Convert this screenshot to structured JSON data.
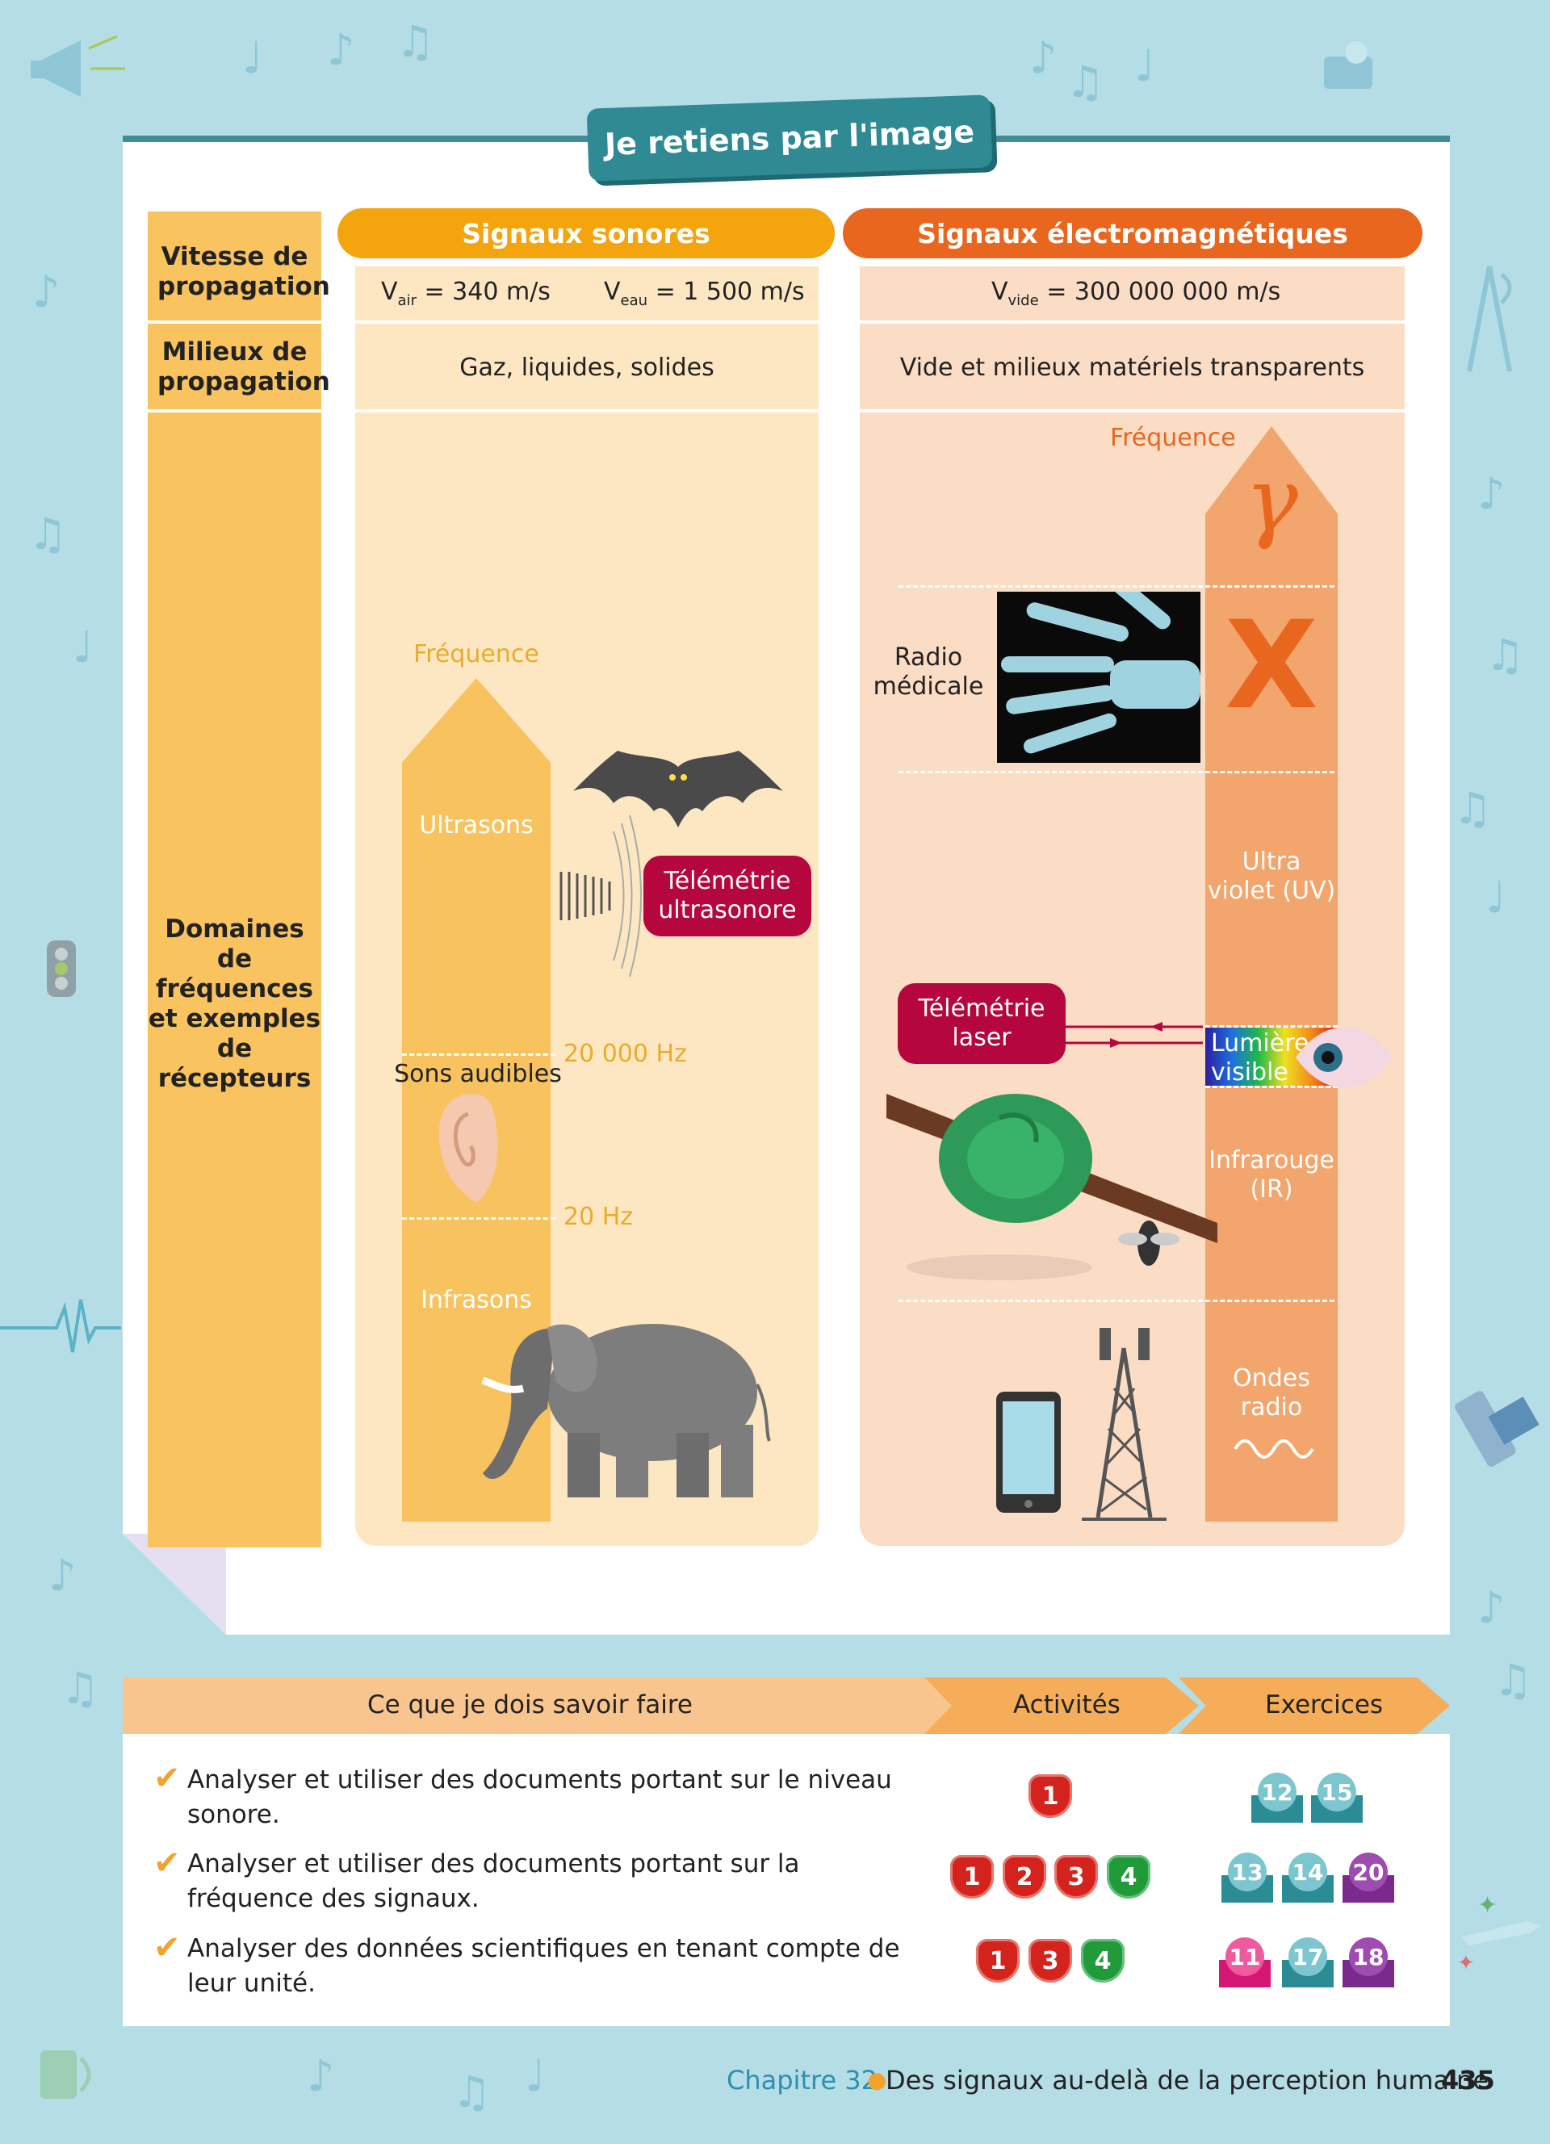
{
  "title": "Je retiens par l'image",
  "row_labels": {
    "speed": "Vitesse de propagation",
    "media": "Milieux de propagation",
    "domains": "Domaines de fréquences et exemples de récepteurs"
  },
  "columns": {
    "sound": {
      "header": "Signaux sonores",
      "speed_air_label": "V",
      "speed_air_sub": "air",
      "speed_air_value": " = 340 m/s",
      "speed_water_label": "V",
      "speed_water_sub": "eau",
      "speed_water_value": " = 1 500 m/s",
      "media": "Gaz, liquides, solides",
      "frequency_label": "Fréquence",
      "ultrasons": "Ultrasons",
      "audible": "Sons audibles",
      "infrasons": "Infrasons",
      "limit_high": "20 000 Hz",
      "limit_low": "20 Hz",
      "telemetry": "Télémétrie ultrasonore"
    },
    "em": {
      "header": "Signaux électromagnétiques",
      "speed_label": "V",
      "speed_sub": "vide",
      "speed_value": " = 300 000 000 m/s",
      "media": "Vide et milieux matériels transparents",
      "frequency_label": "Fréquence",
      "gamma": "γ",
      "xray": "X",
      "radio_med": "Radio médicale",
      "uv": "Ultra violet (UV)",
      "visible": "Lumière visible",
      "ir": "Infrarouge (IR)",
      "radio": "Ondes radio",
      "telemetry": "Télémétrie laser"
    }
  },
  "skills": {
    "header": "Ce que je dois savoir faire",
    "activities_header": "Activités",
    "exercises_header": "Exercices",
    "rows": [
      {
        "text": "Analyser et utiliser des documents portant sur le niveau sonore.",
        "activities": [
          "1"
        ],
        "exercises": [
          "12",
          "15"
        ]
      },
      {
        "text": "Analyser et utiliser des documents portant sur la fréquence des signaux.",
        "activities": [
          "1",
          "2",
          "3",
          "4"
        ],
        "exercises": [
          "13",
          "14",
          "20"
        ]
      },
      {
        "text": "Analyser des données scientifiques en tenant compte de leur unité.",
        "activities": [
          "1",
          "3",
          "4"
        ],
        "exercises": [
          "11",
          "17",
          "18"
        ]
      }
    ]
  },
  "footer": {
    "chapter": "Chapitre 32",
    "chapter_title": "Des signaux au-delà de la perception humaine",
    "page": "435"
  },
  "colors": {
    "teal": "#2f8a94",
    "sound_header": "#f4a40d",
    "em_header": "#e8661d",
    "label_col": "#f9c35f",
    "pill": "#b5063d"
  }
}
